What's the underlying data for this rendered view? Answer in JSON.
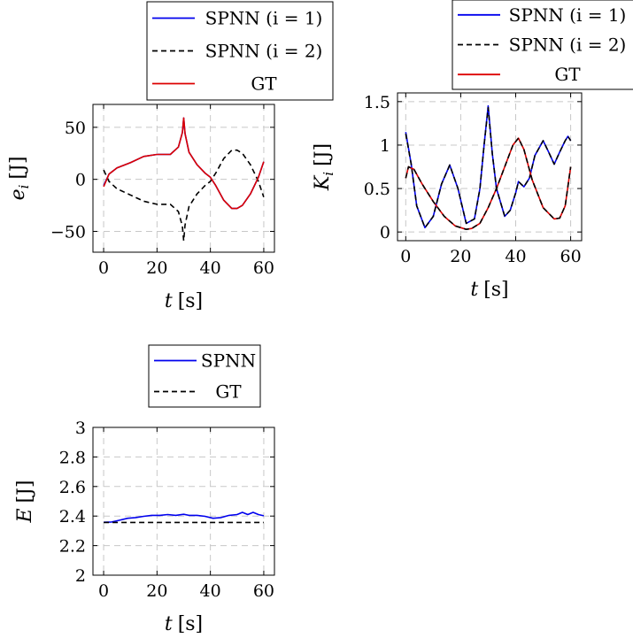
{
  "chart_data": [
    {
      "id": "e",
      "type": "line",
      "xlabel_var": "t",
      "xlabel_unit": "[s]",
      "ylabel_var": "e",
      "ylabel_sub": "i",
      "ylabel_unit": "[J]",
      "xlim": [
        -4,
        64
      ],
      "ylim": [
        -70,
        72
      ],
      "xticks": [
        0,
        20,
        40,
        60
      ],
      "yticks": [
        -50,
        0,
        50
      ],
      "ytick_labels": [
        "−50",
        "0",
        "50"
      ],
      "grid": true,
      "legend_position": "top",
      "legend": [
        "SPNN (i = 1)",
        "SPNN (i = 2)",
        "GT"
      ],
      "series": [
        {
          "name": "SPNN (i = 1)",
          "color": "#0000ee",
          "style": "solid",
          "x": [
            0,
            2,
            5,
            10,
            15,
            20,
            25,
            28,
            29.5,
            30,
            30.5,
            32,
            35,
            38,
            40,
            42,
            45,
            48,
            50,
            52,
            55,
            58,
            60
          ],
          "y": [
            -6,
            5,
            11,
            16,
            22,
            24,
            24,
            31,
            45,
            59,
            44,
            26,
            14,
            6,
            2,
            -6,
            -20,
            -28,
            -28,
            -25,
            -14,
            2,
            17
          ]
        },
        {
          "name": "SPNN (i = 2)",
          "color": "#000000",
          "style": "dashed",
          "x": [
            0,
            2,
            5,
            10,
            15,
            20,
            25,
            28,
            29.5,
            30,
            30.5,
            32,
            35,
            38,
            40,
            42,
            45,
            48,
            50,
            52,
            55,
            58,
            60
          ],
          "y": [
            9,
            -2,
            -9,
            -15,
            -21,
            -24,
            -24,
            -31,
            -45,
            -59,
            -44,
            -26,
            -14,
            -6,
            -2,
            6,
            20,
            28,
            28,
            25,
            14,
            -2,
            -17
          ]
        },
        {
          "name": "GT",
          "color": "#dd0000",
          "style": "solid",
          "x": [
            0,
            2,
            5,
            10,
            15,
            20,
            25,
            28,
            29.5,
            30,
            30.5,
            32,
            35,
            38,
            40,
            42,
            45,
            48,
            50,
            52,
            55,
            58,
            60
          ],
          "y": [
            -7,
            5,
            11,
            16,
            22,
            24,
            24,
            31,
            45,
            59,
            44,
            26,
            14,
            6,
            2,
            -6,
            -20,
            -28,
            -28,
            -25,
            -14,
            2,
            17
          ]
        }
      ]
    },
    {
      "id": "K",
      "type": "line",
      "xlabel_var": "t",
      "xlabel_unit": "[s]",
      "ylabel_var": "K",
      "ylabel_sub": "i",
      "ylabel_unit": "[J]",
      "xlim": [
        -3,
        64
      ],
      "ylim": [
        -0.1,
        1.6
      ],
      "xticks": [
        0,
        20,
        40,
        60
      ],
      "yticks": [
        0,
        0.5,
        1,
        1.5
      ],
      "ytick_labels": [
        "0",
        "0.5",
        "1",
        "1.5"
      ],
      "grid": true,
      "legend_position": "top",
      "legend": [
        "SPNN (i = 1)",
        "SPNN (i = 2)",
        "GT"
      ],
      "series": [
        {
          "name": "SPNN (i = 1)",
          "color": "#0000ee",
          "style": "solid",
          "x": [
            0,
            2,
            4,
            7,
            10,
            13,
            16,
            19,
            22,
            25,
            27,
            28.5,
            30,
            31.5,
            33,
            36,
            38,
            40,
            41,
            43,
            45,
            47,
            50,
            52,
            54,
            56,
            58,
            59,
            60
          ],
          "y": [
            1.15,
            0.78,
            0.3,
            0.05,
            0.18,
            0.55,
            0.77,
            0.5,
            0.1,
            0.15,
            0.5,
            1.0,
            1.45,
            0.9,
            0.5,
            0.18,
            0.25,
            0.45,
            0.58,
            0.52,
            0.62,
            0.88,
            1.05,
            0.92,
            0.78,
            0.92,
            1.05,
            1.1,
            1.05
          ]
        },
        {
          "name": "SPNN (i = 2)",
          "color": "#000000",
          "style": "dashed",
          "x": [
            0,
            2,
            4,
            7,
            10,
            13,
            16,
            19,
            22,
            25,
            27,
            28.5,
            30,
            31.5,
            33,
            36,
            38,
            40,
            41,
            43,
            45,
            47,
            50,
            52,
            54,
            56,
            58,
            59,
            60
          ],
          "y": [
            1.13,
            0.78,
            0.3,
            0.05,
            0.18,
            0.55,
            0.77,
            0.5,
            0.1,
            0.15,
            0.5,
            1.0,
            1.43,
            0.9,
            0.5,
            0.18,
            0.25,
            0.45,
            0.58,
            0.52,
            0.62,
            0.88,
            1.05,
            0.92,
            0.78,
            0.92,
            1.05,
            1.1,
            1.05
          ]
        },
        {
          "name": "GT",
          "color": "#dd0000",
          "style": "solid",
          "x": [
            0,
            1,
            3,
            6,
            10,
            14,
            18,
            22,
            24,
            27,
            30,
            33,
            36,
            39,
            41,
            43,
            46,
            50,
            54,
            56,
            58,
            60
          ],
          "y": [
            0.62,
            0.75,
            0.72,
            0.55,
            0.35,
            0.18,
            0.07,
            0.03,
            0.04,
            0.1,
            0.28,
            0.5,
            0.75,
            1.0,
            1.08,
            0.95,
            0.6,
            0.28,
            0.15,
            0.16,
            0.3,
            0.75
          ]
        },
        {
          "name": "",
          "color": "#000000",
          "style": "dashed",
          "x": [
            0,
            1,
            3,
            6,
            10,
            14,
            18,
            22,
            24,
            27,
            30,
            33,
            36,
            39,
            41,
            43,
            46,
            50,
            54,
            56,
            58,
            60
          ],
          "y": [
            0.62,
            0.75,
            0.72,
            0.55,
            0.35,
            0.18,
            0.07,
            0.03,
            0.04,
            0.1,
            0.28,
            0.5,
            0.75,
            1.0,
            1.08,
            0.95,
            0.6,
            0.28,
            0.15,
            0.16,
            0.3,
            0.75
          ]
        }
      ]
    },
    {
      "id": "E",
      "type": "line",
      "xlabel_var": "t",
      "xlabel_unit": "[s]",
      "ylabel_var": "E",
      "ylabel_sub": "",
      "ylabel_unit": "[J]",
      "xlim": [
        -4,
        64
      ],
      "ylim": [
        2.0,
        3.0
      ],
      "xticks": [
        0,
        20,
        40,
        60
      ],
      "yticks": [
        2,
        2.2,
        2.4,
        2.6,
        2.8,
        3
      ],
      "ytick_labels": [
        "2",
        "2.2",
        "2.4",
        "2.6",
        "2.8",
        "3"
      ],
      "grid": true,
      "legend_position": "top",
      "legend": [
        "SPNN",
        "GT"
      ],
      "series": [
        {
          "name": "SPNN",
          "color": "#0000ee",
          "style": "solid",
          "x": [
            0,
            3,
            6,
            9,
            12,
            15,
            18,
            21,
            24,
            27,
            30,
            32,
            35,
            38,
            41,
            44,
            47,
            50,
            52,
            54,
            56,
            58,
            60
          ],
          "y": [
            2.358,
            2.36,
            2.372,
            2.385,
            2.39,
            2.398,
            2.405,
            2.405,
            2.41,
            2.405,
            2.412,
            2.405,
            2.405,
            2.398,
            2.385,
            2.39,
            2.405,
            2.41,
            2.425,
            2.41,
            2.425,
            2.41,
            2.402
          ]
        },
        {
          "name": "GT",
          "color": "#000000",
          "style": "dashed",
          "x": [
            0,
            60
          ],
          "y": [
            2.357,
            2.357
          ]
        }
      ]
    }
  ]
}
